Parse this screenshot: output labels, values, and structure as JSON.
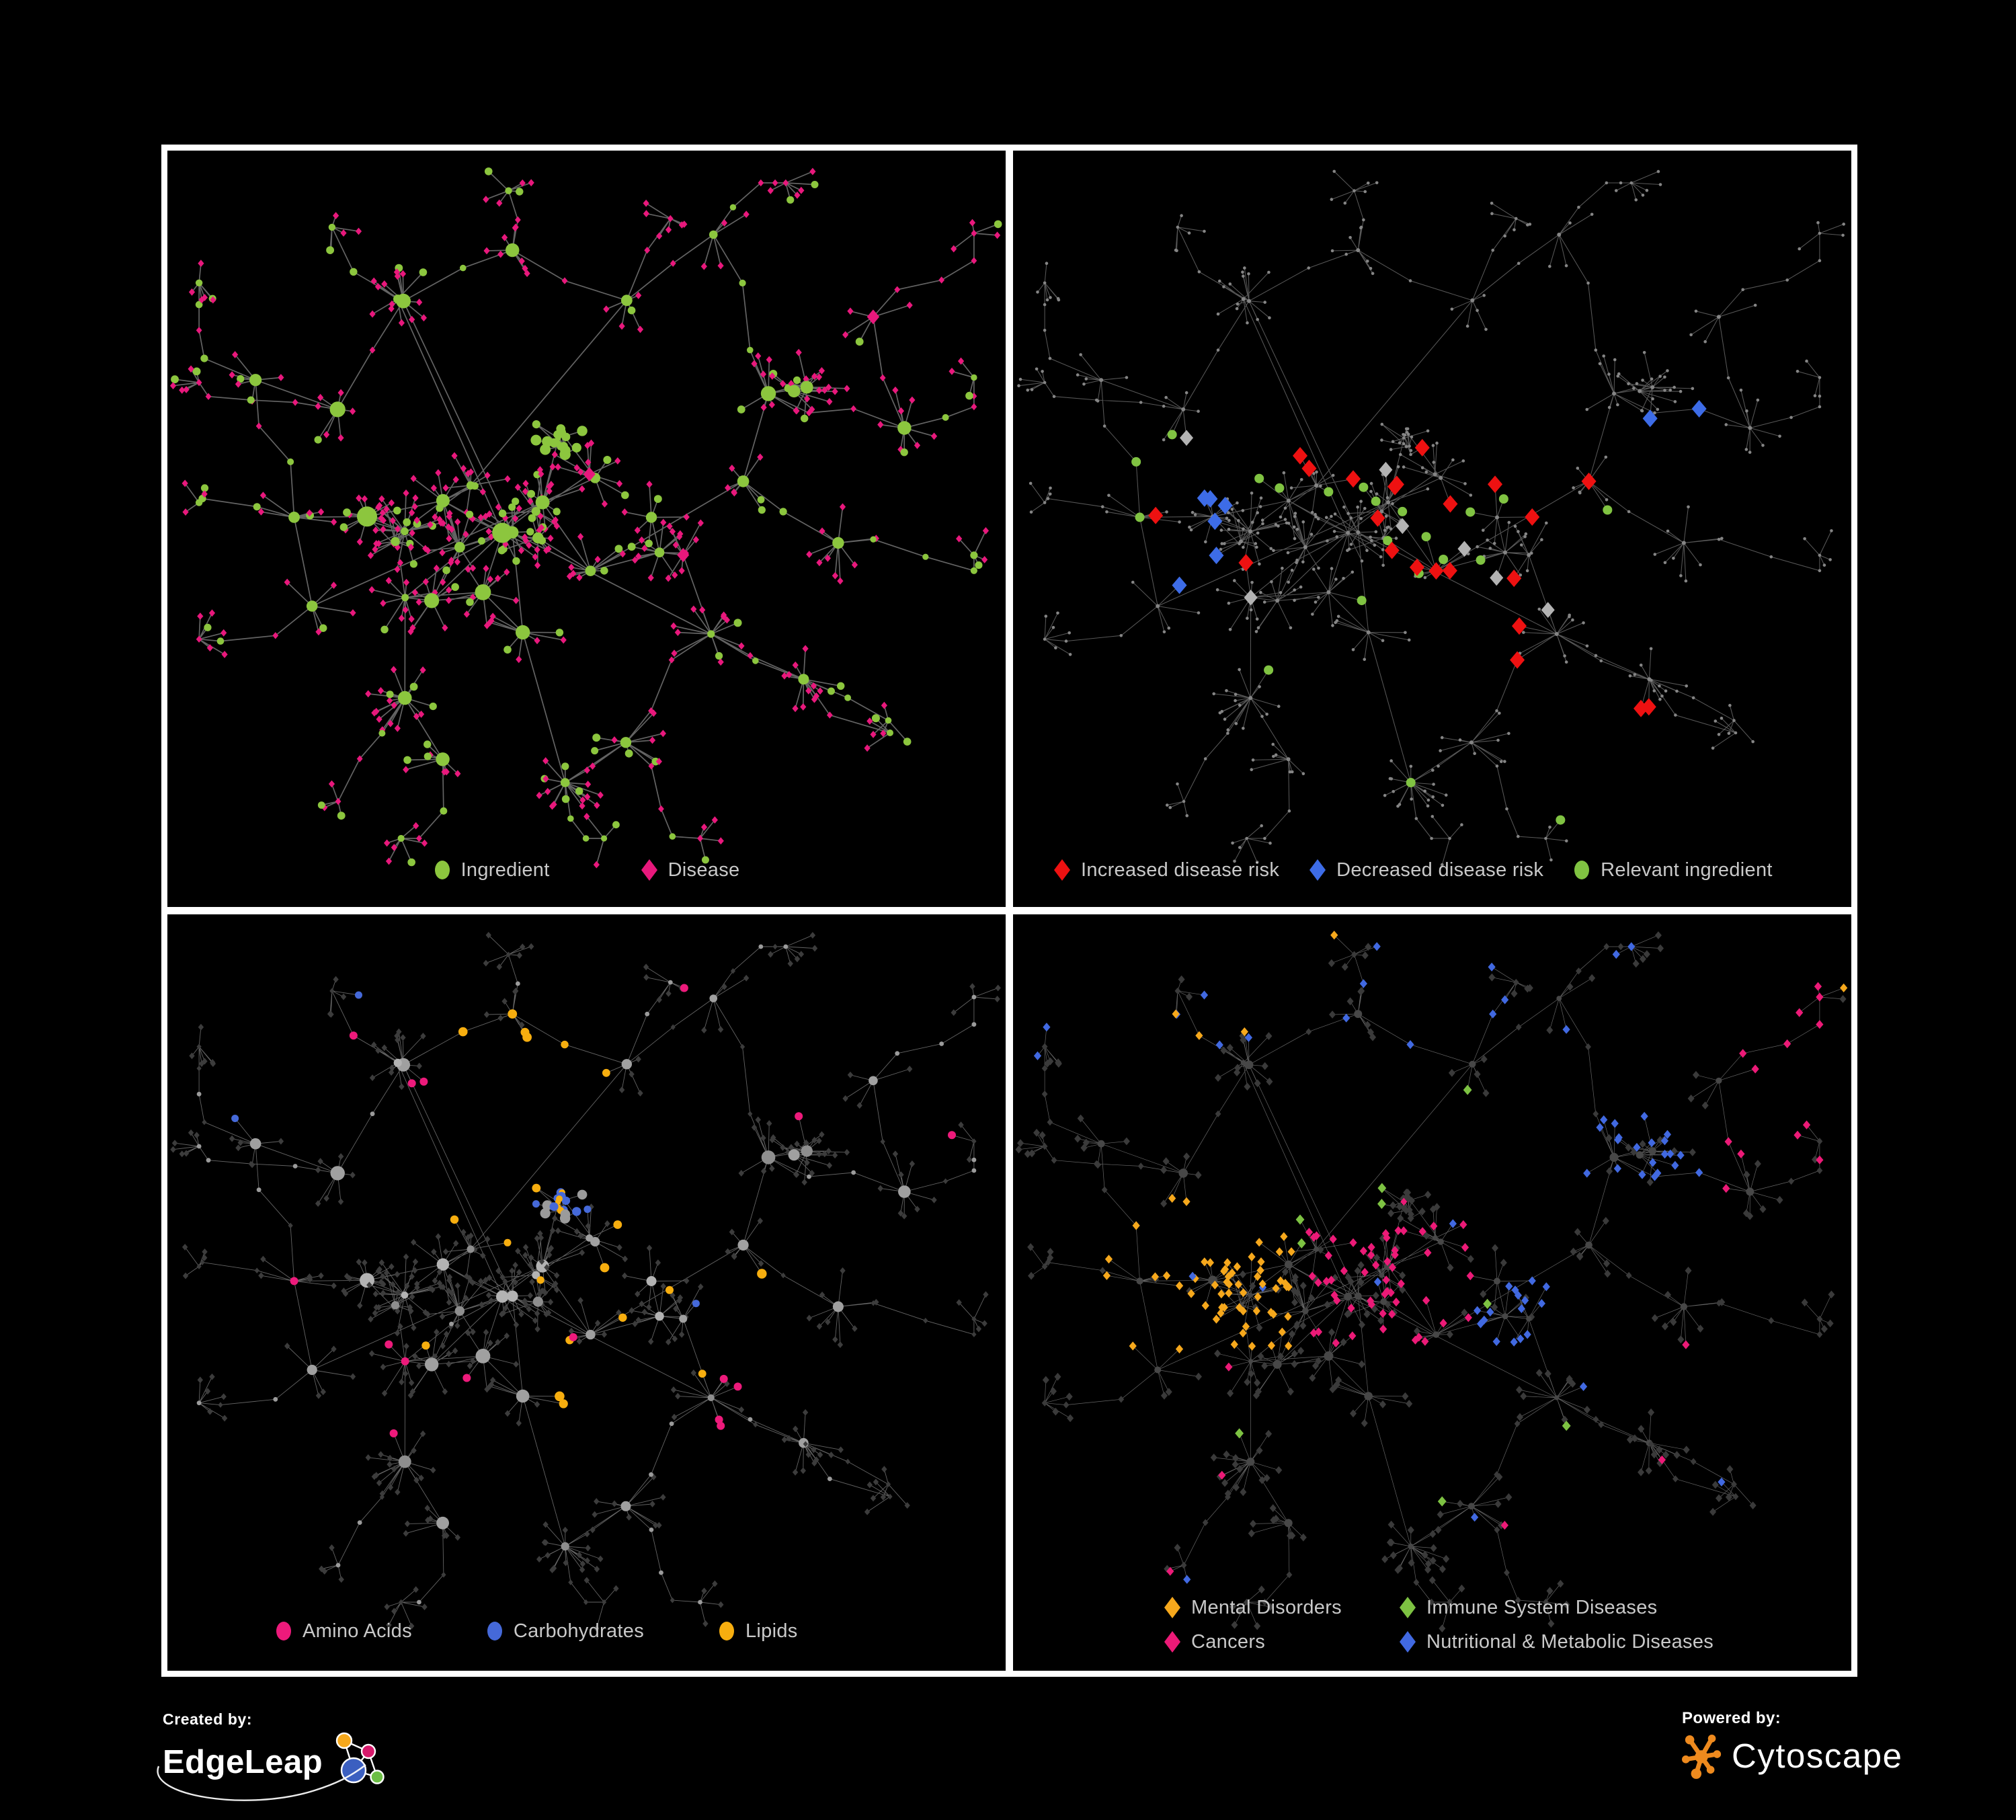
{
  "branding": {
    "created_by": "Created by:",
    "edgeleap": "EdgeLeap",
    "powered_by": "Powered by:",
    "cytoscape": "Cytoscape"
  },
  "panels": [
    {
      "id": "ingredient-disease",
      "legend": [
        {
          "label": "Ingredient",
          "color": "#8CC63E",
          "shape": "circle"
        },
        {
          "label": "Disease",
          "color": "#E8187C",
          "shape": "diamond"
        }
      ]
    },
    {
      "id": "disease-risk",
      "legend": [
        {
          "label": "Increased disease risk",
          "color": "#EE1111",
          "shape": "diamond"
        },
        {
          "label": "Decreased disease risk",
          "color": "#3D6CE7",
          "shape": "diamond"
        },
        {
          "label": "Relevant ingredient",
          "color": "#80C342",
          "shape": "circle"
        }
      ]
    },
    {
      "id": "ingredient-classes",
      "legend": [
        {
          "label": "Amino Acids",
          "color": "#ED1A7B",
          "shape": "circle"
        },
        {
          "label": "Carbohydrates",
          "color": "#4569D9",
          "shape": "circle"
        },
        {
          "label": "Lipids",
          "color": "#F7AE0F",
          "shape": "circle"
        }
      ]
    },
    {
      "id": "disease-categories",
      "legend": [
        {
          "label": "Mental Disorders",
          "color": "#F6A81C",
          "shape": "diamond"
        },
        {
          "label": "Immune System Diseases",
          "color": "#7DC242",
          "shape": "diamond"
        },
        {
          "label": "Cancers",
          "color": "#EC1A77",
          "shape": "diamond"
        },
        {
          "label": "Nutritional & Metabolic Diseases",
          "color": "#4169E1",
          "shape": "diamond"
        }
      ]
    }
  ],
  "network": {
    "background": "#000000",
    "frame_color": "#FFFFFF",
    "legend_text_color": "#C9C9C9",
    "panel_styles": [
      {
        "edge": "#6E6E6E",
        "edge_width": 1.7,
        "edge_opacity": 0.9,
        "ingredient": "#8CC63E",
        "disease": "#E8187C"
      },
      {
        "edge": "#616161",
        "edge_width": 1.05,
        "edge_opacity": 0.9,
        "base": "#858585",
        "increased": "#EE1111",
        "decreased": "#3D6CE7",
        "relevant": "#80C342",
        "other_disease": "#B3B3B3"
      },
      {
        "edge": "#757575",
        "edge_width": 0.9,
        "edge_opacity": 0.85,
        "ingredient_gray": "#9B9B9B",
        "disease": "#3C3C3C",
        "amino": "#ED1A7B",
        "carb": "#4569D9",
        "lipid": "#F7AE0F"
      },
      {
        "edge": "#7E7E7E",
        "edge_width": 0.7,
        "edge_opacity": 0.8,
        "base": "#3A3A3A",
        "hub": "#474747",
        "mental": "#F6A81C",
        "immune": "#7DC242",
        "cancer": "#EC1A77",
        "nutritional": "#4169E1"
      }
    ],
    "logo_colors": {
      "edgeleap_orange": "#F5A81C",
      "edgeleap_magenta": "#D6196B",
      "edgeleap_blue": "#3B5FC0",
      "edgeleap_green": "#6CBE45",
      "cytoscape_orange": "#EE8A1E"
    }
  }
}
